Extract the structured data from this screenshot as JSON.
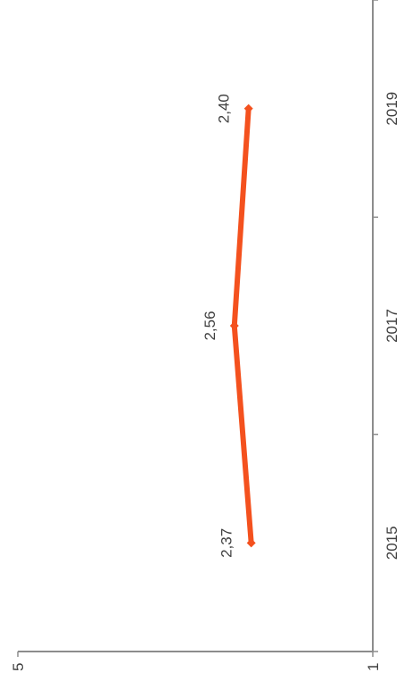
{
  "chart_data": {
    "type": "line",
    "title": "",
    "xlabel": "",
    "ylabel": "",
    "categories": [
      "2015",
      "2017",
      "2019"
    ],
    "x_ticks": [
      "2015",
      "2017",
      "2019"
    ],
    "values": [
      2.37,
      2.56,
      2.4
    ],
    "data_labels": [
      "2,37",
      "2,56",
      "2,40"
    ],
    "ylim": [
      1,
      5
    ],
    "y_ticks": [
      "1",
      "5"
    ],
    "grid": false,
    "legend": "none",
    "orientation": "rotated 90° clockwise",
    "series_color": "#f4511e",
    "axis_color": "#8c8c8c",
    "text_color": "#404040"
  }
}
